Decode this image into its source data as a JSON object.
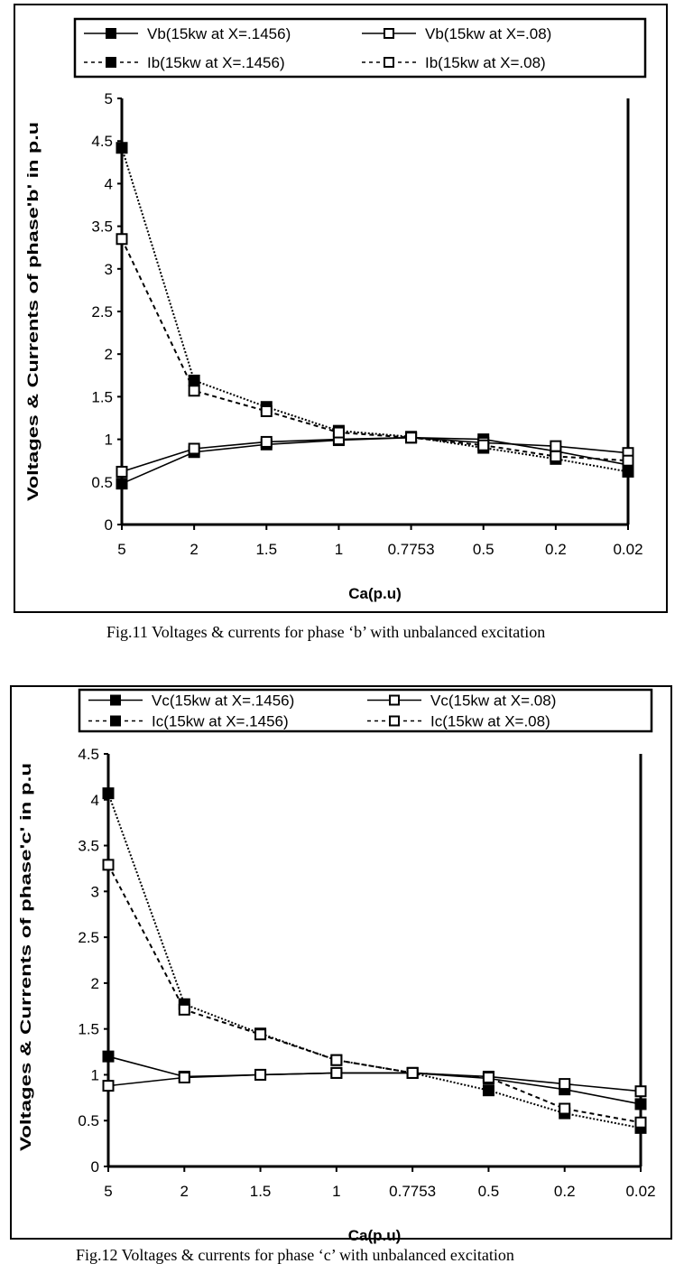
{
  "chart_data": [
    {
      "type": "line",
      "xlabel": "Ca(p.u)",
      "ylabel": "Voltages & Currents of phase'b' in p.u",
      "categories": [
        "5",
        "2",
        "1.5",
        "1",
        "0.7753",
        "0.5",
        "0.2",
        "0.02"
      ],
      "ylim": [
        0,
        5
      ],
      "yticks": [
        "0",
        "0.5",
        "1",
        "1.5",
        "2",
        "2.5",
        "3",
        "3.5",
        "4",
        "4.5",
        "5"
      ],
      "grid": false,
      "legend": "top",
      "caption": "Fig.11 Voltages & currents for phase ‘b’  with unbalanced excitation",
      "series": [
        {
          "name": "Vb(15kw  at X=.1456)",
          "line": "solid",
          "marker": "filled-square",
          "values": [
            0.48,
            0.85,
            0.94,
            0.99,
            1.02,
            1.0,
            0.86,
            0.7
          ]
        },
        {
          "name": "Vb(15kw  at X=.08)",
          "line": "solid",
          "marker": "open-square",
          "values": [
            0.62,
            0.89,
            0.97,
            1.0,
            1.02,
            0.96,
            0.92,
            0.84
          ]
        },
        {
          "name": "Ib(15kw  at X=.1456)",
          "line": "dotted",
          "marker": "filled-square",
          "values": [
            4.42,
            1.69,
            1.38,
            1.1,
            1.03,
            0.9,
            0.77,
            0.62
          ]
        },
        {
          "name": "Ib(15kw  at X=.08)",
          "line": "dashed",
          "marker": "open-square",
          "values": [
            3.35,
            1.57,
            1.33,
            1.08,
            1.02,
            0.93,
            0.8,
            0.75
          ]
        }
      ]
    },
    {
      "type": "line",
      "xlabel": "Ca(p.u)",
      "ylabel": "Voltages & Currents of phase'c' in p.u",
      "categories": [
        "5",
        "2",
        "1.5",
        "1",
        "0.7753",
        "0.5",
        "0.2",
        "0.02"
      ],
      "ylim": [
        0,
        4.5
      ],
      "yticks": [
        "0",
        "0.5",
        "1",
        "1.5",
        "2",
        "2.5",
        "3",
        "3.5",
        "4",
        "4.5"
      ],
      "grid": false,
      "legend": "top",
      "caption": "Fig.12 Voltages & currents for phase ‘c’ with  unbalanced excitation",
      "series": [
        {
          "name": "Vc(15kw  at X=.1456)",
          "line": "solid",
          "marker": "filled-square",
          "values": [
            1.2,
            0.98,
            1.0,
            1.02,
            1.02,
            0.96,
            0.84,
            0.68
          ]
        },
        {
          "name": "Vc(15kw  at X=.08)",
          "line": "solid",
          "marker": "open-square",
          "values": [
            0.88,
            0.97,
            1.0,
            1.02,
            1.02,
            0.98,
            0.9,
            0.82
          ]
        },
        {
          "name": "Ic(15kw  at X=.1456)",
          "line": "dotted",
          "marker": "filled-square",
          "values": [
            4.07,
            1.77,
            1.45,
            1.16,
            1.02,
            0.83,
            0.58,
            0.42
          ]
        },
        {
          "name": "Ic(15kw  at X=.08)",
          "line": "dashed",
          "marker": "open-square",
          "values": [
            3.29,
            1.71,
            1.44,
            1.16,
            1.02,
            0.97,
            0.63,
            0.48
          ]
        }
      ]
    }
  ]
}
